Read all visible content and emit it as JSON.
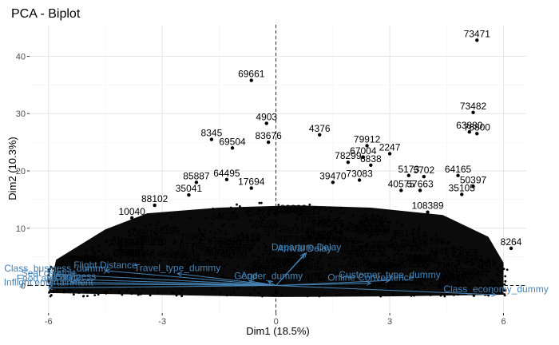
{
  "chart_data": {
    "type": "scatter",
    "title": "PCA - Biplot",
    "xlabel": "Dim1 (18.5%)",
    "ylabel": "Dim2 (10.3%)",
    "xlim": [
      -6.5,
      6.6
    ],
    "ylim": [
      -4.8,
      45.5
    ],
    "x_ticks": [
      "-6",
      "-3",
      "0",
      "3",
      "6"
    ],
    "x_tick_values": [
      -6,
      -3,
      0,
      3,
      6
    ],
    "y_ticks": [
      "0",
      "10",
      "20",
      "30",
      "40"
    ],
    "y_tick_values": [
      0,
      10,
      20,
      30,
      40
    ],
    "grid": true,
    "reference_lines": {
      "x": 0,
      "y": 0,
      "style": "dashed"
    },
    "point_color": "#000000",
    "arrow_color": "#4682b4",
    "points": [
      {
        "label": "73471",
        "x": 5.3,
        "y": 42.8
      },
      {
        "label": "73482",
        "x": 5.2,
        "y": 30.2
      },
      {
        "label": "63880",
        "x": 5.1,
        "y": 26.8
      },
      {
        "label": "76800",
        "x": 5.3,
        "y": 26.5
      },
      {
        "label": "69661",
        "x": -0.65,
        "y": 35.8
      },
      {
        "label": "4903",
        "x": -0.25,
        "y": 28.3
      },
      {
        "label": "83676",
        "x": -0.2,
        "y": 25.0
      },
      {
        "label": "8345",
        "x": -1.7,
        "y": 25.5
      },
      {
        "label": "69504",
        "x": -1.15,
        "y": 24.0
      },
      {
        "label": "4376",
        "x": 1.15,
        "y": 26.3
      },
      {
        "label": "79912",
        "x": 2.4,
        "y": 24.4
      },
      {
        "label": "2247",
        "x": 3.0,
        "y": 23.0
      },
      {
        "label": "78299",
        "x": 1.9,
        "y": 21.5
      },
      {
        "label": "67004",
        "x": 2.3,
        "y": 22.4
      },
      {
        "label": "6838",
        "x": 2.5,
        "y": 21.0
      },
      {
        "label": "5173",
        "x": 3.5,
        "y": 19.2
      },
      {
        "label": "5702",
        "x": 3.9,
        "y": 19.0
      },
      {
        "label": "64165",
        "x": 4.8,
        "y": 19.2
      },
      {
        "label": "50397",
        "x": 5.2,
        "y": 17.3
      },
      {
        "label": "35105",
        "x": 4.9,
        "y": 15.9
      },
      {
        "label": "73083",
        "x": 2.2,
        "y": 18.4
      },
      {
        "label": "39470",
        "x": 1.5,
        "y": 18.0
      },
      {
        "label": "40575",
        "x": 3.3,
        "y": 16.6
      },
      {
        "label": "57663",
        "x": 3.8,
        "y": 16.6
      },
      {
        "label": "108389",
        "x": 4.0,
        "y": 12.8
      },
      {
        "label": "64495",
        "x": -1.3,
        "y": 18.5
      },
      {
        "label": "17694",
        "x": -0.65,
        "y": 17.0
      },
      {
        "label": "85887",
        "x": -2.1,
        "y": 18.0
      },
      {
        "label": "35041",
        "x": -2.3,
        "y": 15.8
      },
      {
        "label": "88102",
        "x": -3.2,
        "y": 14.0
      },
      {
        "label": "10040",
        "x": -3.8,
        "y": 11.8
      },
      {
        "label": "8264",
        "x": 6.2,
        "y": 6.5
      }
    ],
    "variables": [
      {
        "label": "Departure Delay",
        "x": 0.8,
        "y": 5.7
      },
      {
        "label": "Arrival Delay",
        "x": 0.75,
        "y": 5.5
      },
      {
        "label": "Class_economy_dummy",
        "x": 5.8,
        "y": -1.6
      },
      {
        "label": "Customer_type_dummy",
        "x": 3.0,
        "y": 0.9
      },
      {
        "label": "Online Convenience",
        "x": 2.5,
        "y": 0.4
      },
      {
        "label": "Age",
        "x": -0.7,
        "y": 0.8
      },
      {
        "label": "Gender_dummy",
        "x": -0.2,
        "y": 0.7
      },
      {
        "label": "Class_business_dummy",
        "x": -5.8,
        "y": 2.0
      },
      {
        "label": "Flight Distance",
        "x": -4.5,
        "y": 2.6
      },
      {
        "label": "Seat comfort",
        "x": -6.0,
        "y": 1.2
      },
      {
        "label": "Food and drink",
        "x": -6.0,
        "y": 0.3
      },
      {
        "label": "Inflight entertainment",
        "x": -6.0,
        "y": -0.4
      },
      {
        "label": "Cleanliness",
        "x": -5.4,
        "y": 0.6
      },
      {
        "label": "Travel_type_dummy",
        "x": -2.6,
        "y": 2.1
      }
    ]
  }
}
